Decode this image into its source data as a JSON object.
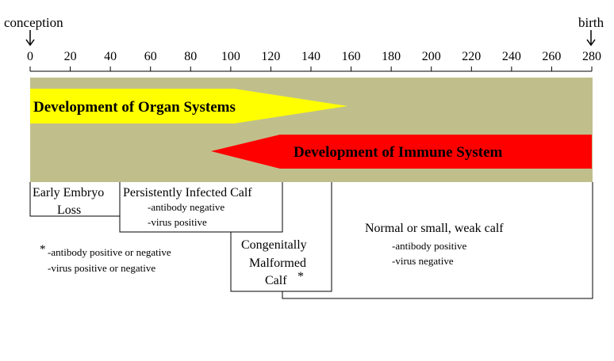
{
  "endpoints": {
    "start": "conception",
    "end": "birth"
  },
  "axis": {
    "min": 0,
    "max": 280,
    "ticks": [
      "0",
      "20",
      "40",
      "60",
      "80",
      "100",
      "120",
      "140",
      "160",
      "180",
      "200",
      "220",
      "240",
      "260",
      "280"
    ]
  },
  "colors": {
    "band": "#c0bf8c",
    "organ_arrow": "#ffff00",
    "immune_arrow": "#ff0000",
    "line": "#000000"
  },
  "bands": [
    {
      "label": "Development of Organ Systems",
      "start_day": 0,
      "end_day": 158,
      "direction": "right",
      "color": "#ffff00"
    },
    {
      "label": "Development of Immune System",
      "start_day": 90,
      "end_day": 280,
      "direction": "left",
      "color": "#ff0000"
    }
  ],
  "outcomes": {
    "early_loss": {
      "line1": "Early Embryo",
      "line2": "Loss"
    },
    "persistent": {
      "title": "Persistently Infected Calf",
      "note1": "-antibody negative",
      "note2": "-virus positive"
    },
    "malformed": {
      "line1": "Congenitally",
      "line2": "Malformed",
      "line3": "Calf",
      "marker": "*"
    },
    "normal": {
      "title": "Normal or small, weak calf",
      "note1": "-antibody positive",
      "note2": "-virus negative"
    }
  },
  "footnote": {
    "marker": "*",
    "line1": "-antibody positive or negative",
    "line2": "-virus positive or negative"
  }
}
